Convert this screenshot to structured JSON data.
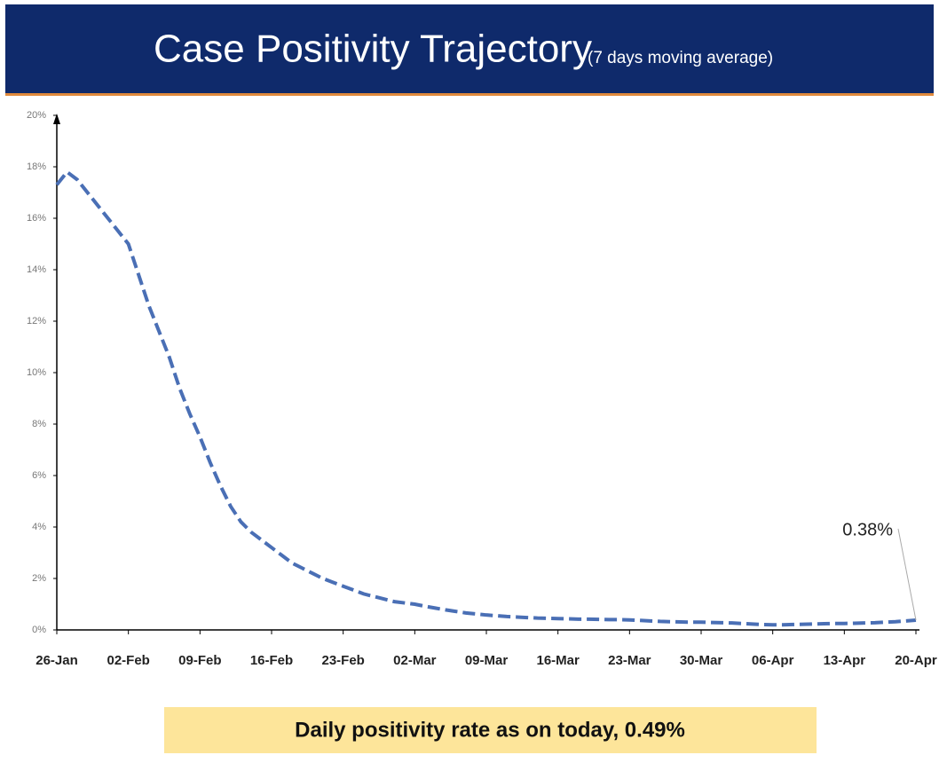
{
  "chart_data": {
    "type": "line",
    "title": "Case Positivity Trajectory",
    "subtitle": "(7 days moving average)",
    "footer": "Daily positivity rate as on today, 0.49%",
    "categories": [
      "26-Jan",
      null,
      null,
      null,
      null,
      null,
      null,
      "02-Feb",
      null,
      null,
      null,
      null,
      null,
      null,
      "09-Feb",
      null,
      null,
      null,
      null,
      null,
      null,
      "16-Feb",
      null,
      null,
      null,
      null,
      null,
      null,
      "23-Feb",
      null,
      null,
      null,
      null,
      null,
      null,
      "02-Mar",
      null,
      null,
      null,
      null,
      null,
      null,
      "09-Mar",
      null,
      null,
      null,
      null,
      null,
      null,
      "16-Mar",
      null,
      null,
      null,
      null,
      null,
      null,
      "23-Mar",
      null,
      null,
      null,
      null,
      null,
      null,
      "30-Mar",
      null,
      null,
      null,
      null,
      null,
      null,
      "06-Apr",
      null,
      null,
      null,
      null,
      null,
      null,
      "13-Apr",
      null,
      null,
      null,
      null,
      null,
      null,
      "20-Apr"
    ],
    "values": [
      17.3,
      17.8,
      17.5,
      17.0,
      16.5,
      16.0,
      15.5,
      15.0,
      13.8,
      12.6,
      11.6,
      10.6,
      9.4,
      8.4,
      7.5,
      6.5,
      5.6,
      4.8,
      4.2,
      3.8,
      3.5,
      3.2,
      2.9,
      2.6,
      2.4,
      2.2,
      2.0,
      1.85,
      1.7,
      1.55,
      1.4,
      1.3,
      1.2,
      1.1,
      1.05,
      1.0,
      0.92,
      0.85,
      0.78,
      0.72,
      0.66,
      0.62,
      0.58,
      0.55,
      0.52,
      0.5,
      0.48,
      0.46,
      0.45,
      0.44,
      0.43,
      0.42,
      0.42,
      0.41,
      0.4,
      0.4,
      0.39,
      0.37,
      0.35,
      0.33,
      0.32,
      0.31,
      0.3,
      0.3,
      0.29,
      0.28,
      0.27,
      0.25,
      0.23,
      0.21,
      0.2,
      0.2,
      0.21,
      0.22,
      0.23,
      0.24,
      0.25,
      0.25,
      0.26,
      0.27,
      0.28,
      0.3,
      0.32,
      0.35,
      0.38
    ],
    "color": "#4a6fb5",
    "ylim": [
      0,
      20
    ],
    "yticks": [
      {
        "value": 0,
        "label": "0%"
      },
      {
        "value": 2,
        "label": "2%"
      },
      {
        "value": 4,
        "label": "4%"
      },
      {
        "value": 6,
        "label": "6%"
      },
      {
        "value": 8,
        "label": "8%"
      },
      {
        "value": 10,
        "label": "10%"
      },
      {
        "value": 12,
        "label": "12%"
      },
      {
        "value": 14,
        "label": "14%"
      },
      {
        "value": 16,
        "label": "16%"
      },
      {
        "value": 18,
        "label": "18%"
      },
      {
        "value": 20,
        "label": "20%"
      }
    ],
    "annotation": {
      "value": 0.38,
      "label": "0.38%"
    },
    "grid": false
  }
}
